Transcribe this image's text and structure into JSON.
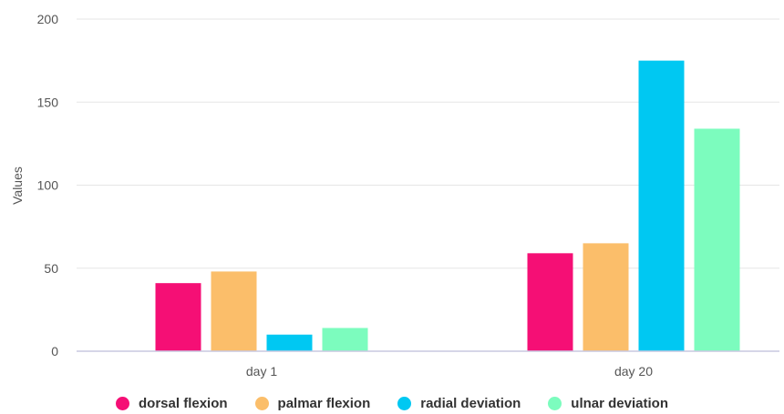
{
  "chart_data": {
    "type": "bar",
    "title": "",
    "xlabel": "",
    "ylabel": "Values",
    "ylim": [
      0,
      200
    ],
    "yticks": [
      0,
      50,
      100,
      150,
      200
    ],
    "grid": true,
    "legend_position": "bottom",
    "categories": [
      "day 1",
      "day 20"
    ],
    "series": [
      {
        "name": "dorsal flexion",
        "color": "#F50F75",
        "values": [
          41,
          59
        ]
      },
      {
        "name": "palmar flexion",
        "color": "#FBBE6A",
        "values": [
          48,
          65
        ]
      },
      {
        "name": "radial deviation",
        "color": "#00C8F2",
        "values": [
          10,
          175
        ]
      },
      {
        "name": "ulnar deviation",
        "color": "#7CFCBE",
        "values": [
          14,
          134
        ]
      }
    ]
  }
}
